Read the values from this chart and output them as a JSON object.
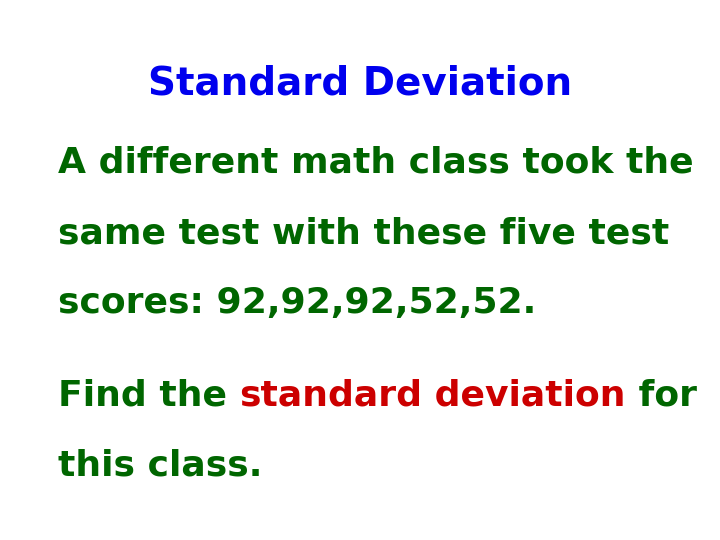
{
  "title": "Standard Deviation",
  "title_color": "#0000ee",
  "title_fontsize": 28,
  "bg_color": "#ffffff",
  "line1": "A different math class took the",
  "line2": "same test with these five test",
  "line3": "scores: 92,92,92,52,52.",
  "body_color": "#006600",
  "body_fontsize": 26,
  "line4_prefix": "Find the ",
  "line4_red1": "standard",
  "line4_red2": " deviation",
  "line4_suffix": " for",
  "line5": "this class.",
  "red_color": "#cc0000",
  "font_family": "Comic Sans MS"
}
